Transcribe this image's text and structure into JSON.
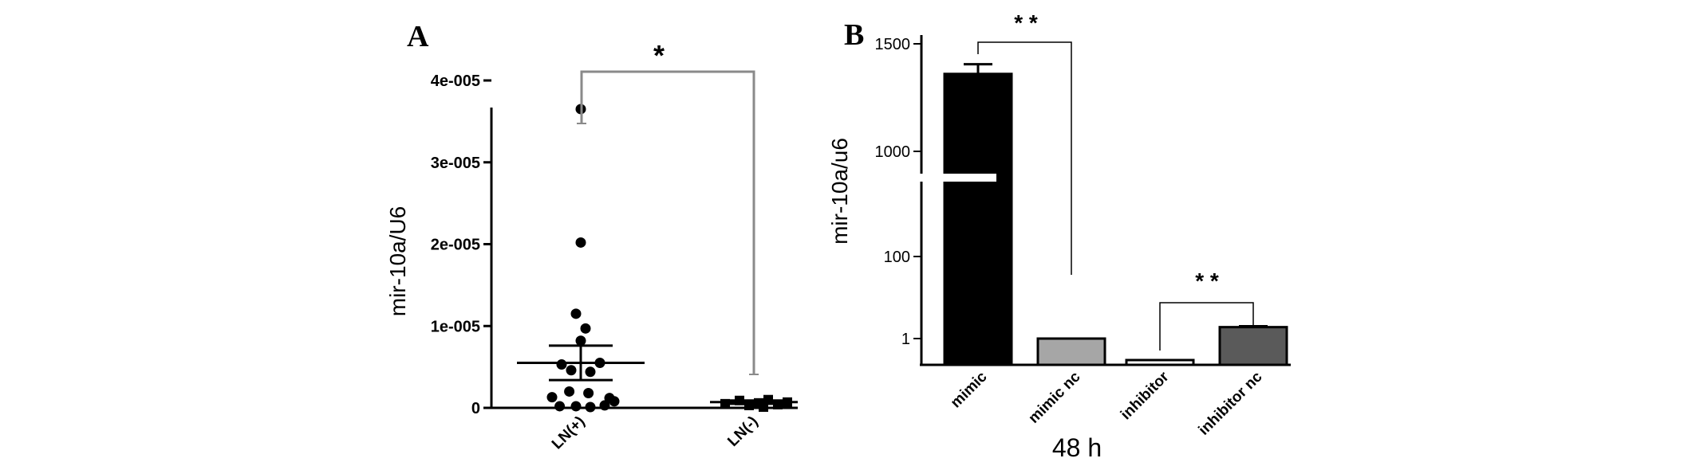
{
  "chart_data": [
    {
      "type": "scatter",
      "panel": "A",
      "ylabel": "mir-10a/U6",
      "ylim": [
        0,
        4e-05
      ],
      "yticks": [
        {
          "value": 0,
          "label": "0"
        },
        {
          "value": 1e-05,
          "label": "1e-005"
        },
        {
          "value": 2e-05,
          "label": "2e-005"
        },
        {
          "value": 3e-05,
          "label": "3e-005"
        },
        {
          "value": 4e-05,
          "label": "4e-005"
        }
      ],
      "categories": [
        "LN(+)",
        "LN(-)"
      ],
      "series": [
        {
          "category": "LN(+)",
          "marker": "circle",
          "points": [
            {
              "offset": 0.0,
              "value": 3.65e-05
            },
            {
              "offset": 0.0,
              "value": 2.02e-05
            },
            {
              "offset": -0.05,
              "value": 1.15e-05
            },
            {
              "offset": 0.05,
              "value": 9.7e-06
            },
            {
              "offset": 0.0,
              "value": 8.2e-06
            },
            {
              "offset": -0.2,
              "value": 5.3e-06
            },
            {
              "offset": 0.2,
              "value": 5.5e-06
            },
            {
              "offset": -0.1,
              "value": 4.6e-06
            },
            {
              "offset": 0.1,
              "value": 4.4e-06
            },
            {
              "offset": -0.3,
              "value": 1.3e-06
            },
            {
              "offset": -0.12,
              "value": 2e-06
            },
            {
              "offset": 0.08,
              "value": 1.8e-06
            },
            {
              "offset": 0.3,
              "value": 1.2e-06
            },
            {
              "offset": -0.22,
              "value": 2e-07
            },
            {
              "offset": -0.05,
              "value": 2e-07
            },
            {
              "offset": 0.1,
              "value": 1e-07
            },
            {
              "offset": 0.25,
              "value": 3e-07
            },
            {
              "offset": 0.35,
              "value": 8e-07
            }
          ],
          "mean": 5.5e-06,
          "sem_low": 3.4e-06,
          "sem_high": 7.6e-06
        },
        {
          "category": "LN(-)",
          "marker": "square",
          "points": [
            {
              "offset": -0.3,
              "value": 5e-07
            },
            {
              "offset": -0.15,
              "value": 9e-07
            },
            {
              "offset": -0.05,
              "value": 3e-07
            },
            {
              "offset": 0.05,
              "value": 6e-07
            },
            {
              "offset": 0.15,
              "value": 1e-06
            },
            {
              "offset": 0.25,
              "value": 4e-07
            },
            {
              "offset": 0.35,
              "value": 7e-07
            },
            {
              "offset": 0.1,
              "value": 1e-07
            }
          ],
          "mean": 7e-07,
          "sem_low": 5e-07,
          "sem_high": 9e-07
        }
      ],
      "significance": [
        {
          "from": "LN(+)",
          "to": "LN(-)",
          "label": "*"
        }
      ]
    },
    {
      "type": "bar",
      "panel": "B",
      "ylabel": "mir-10a/u6",
      "xlabel": "48 h",
      "yscale": "broken-log",
      "yticks": [
        "1",
        "100",
        "1000",
        "1500"
      ],
      "categories": [
        "mimic",
        "mimic nc",
        "inhibitor",
        "inhibitor nc"
      ],
      "values": [
        1360,
        1.0,
        0.2,
        1.9
      ],
      "errors": [
        45,
        0,
        0,
        0.1
      ],
      "colors": [
        "#000000",
        "#a6a6a6",
        "#ffffff",
        "#5a5a5a"
      ],
      "significance": [
        {
          "from": "mimic",
          "to": "mimic nc",
          "label": "* *"
        },
        {
          "from": "inhibitor",
          "to": "inhibitor nc",
          "label": "* *"
        }
      ]
    }
  ]
}
